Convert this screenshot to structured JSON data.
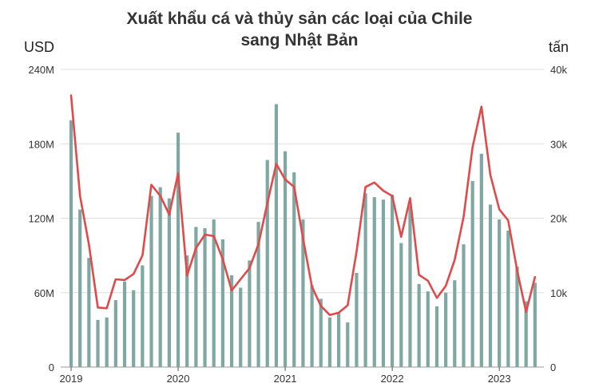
{
  "chart_data": {
    "type": "bar+line",
    "title_line1": "Xuất khẩu cá và thủy sản các loại của Chile",
    "title_line2": "sang Nhật Bản",
    "ylabel_left": "USD",
    "ylabel_right": "tấn",
    "ylim_left": [
      0,
      240
    ],
    "ylim_right": [
      0,
      40
    ],
    "y_ticks_left": [
      "0",
      "60M",
      "120M",
      "180M",
      "240M"
    ],
    "y_ticks_right": [
      "0",
      "10k",
      "20k",
      "30k",
      "40k"
    ],
    "x_ticks": [
      "2019",
      "2020",
      "2021",
      "2022",
      "2023"
    ],
    "x": [
      "2019-01",
      "2019-02",
      "2019-03",
      "2019-04",
      "2019-05",
      "2019-06",
      "2019-07",
      "2019-08",
      "2019-09",
      "2019-10",
      "2019-11",
      "2019-12",
      "2020-01",
      "2020-02",
      "2020-03",
      "2020-04",
      "2020-05",
      "2020-06",
      "2020-07",
      "2020-08",
      "2020-09",
      "2020-10",
      "2020-11",
      "2020-12",
      "2021-01",
      "2021-02",
      "2021-03",
      "2021-04",
      "2021-05",
      "2021-06",
      "2021-07",
      "2021-08",
      "2021-09",
      "2021-10",
      "2021-11",
      "2021-12",
      "2022-01",
      "2022-02",
      "2022-03",
      "2022-04",
      "2022-05",
      "2022-06",
      "2022-07",
      "2022-08",
      "2022-09",
      "2022-10",
      "2022-11",
      "2022-12",
      "2023-01",
      "2023-02",
      "2023-03",
      "2023-04",
      "2023-05"
    ],
    "series": [
      {
        "axis": "left",
        "kind": "bar",
        "color": "#7fa8a2",
        "values": [
          199,
          127,
          88,
          38,
          40,
          54,
          69,
          62,
          82,
          138,
          145,
          136,
          189,
          90,
          113,
          112,
          119,
          103,
          74,
          64,
          86,
          117,
          167,
          212,
          174,
          157,
          119,
          66,
          55,
          40,
          44,
          36,
          76,
          140,
          137,
          135,
          139,
          100,
          130,
          67,
          61,
          49,
          60,
          70,
          99,
          150,
          172,
          131,
          119,
          110,
          81,
          53,
          68
        ]
      },
      {
        "axis": "right",
        "kind": "line",
        "color": "#e04a4a",
        "values": [
          36.5,
          23.0,
          16.5,
          8.0,
          7.9,
          11.8,
          11.7,
          12.5,
          15.0,
          24.5,
          23.0,
          20.5,
          26.0,
          12.3,
          16.0,
          17.8,
          17.6,
          14.5,
          10.3,
          11.8,
          13.3,
          16.5,
          22.0,
          27.3,
          25.2,
          24.2,
          17.3,
          10.8,
          8.2,
          7.0,
          7.3,
          8.3,
          15.5,
          24.2,
          24.8,
          23.7,
          23.0,
          17.5,
          22.7,
          12.4,
          11.6,
          9.3,
          10.9,
          14.4,
          20.2,
          29.5,
          35.0,
          25.8,
          21.2,
          19.7,
          13.0,
          7.4,
          12.1
        ]
      }
    ],
    "grid": true
  }
}
